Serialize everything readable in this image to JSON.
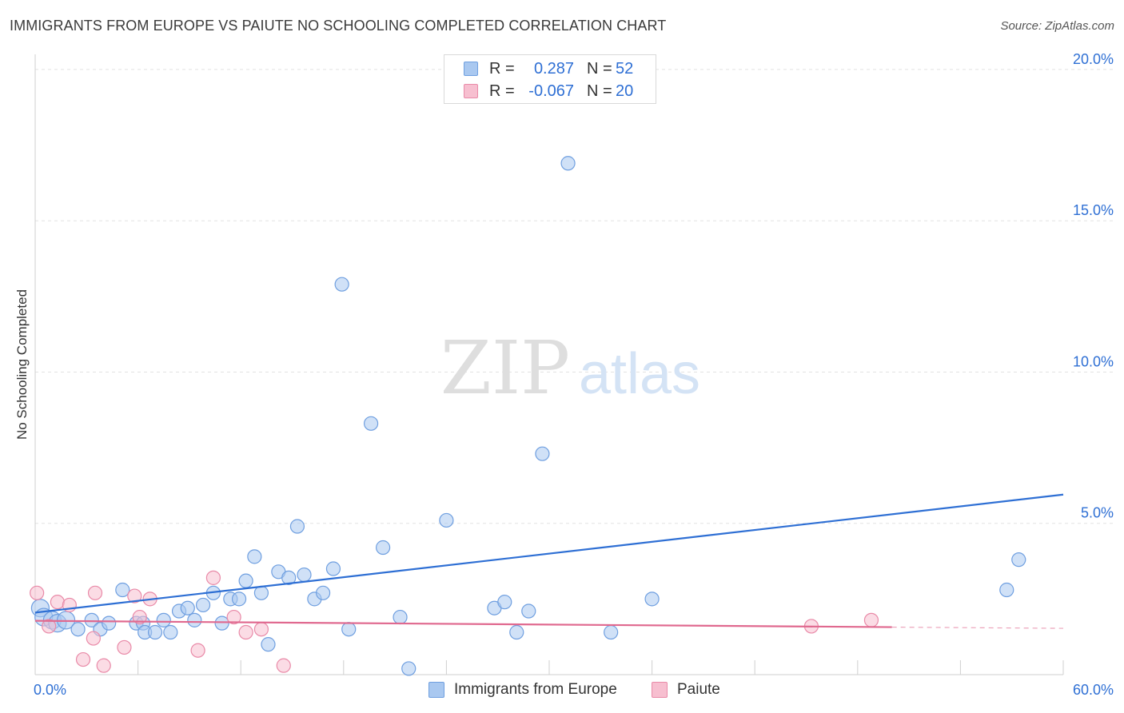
{
  "title": "IMMIGRANTS FROM EUROPE VS PAIUTE NO SCHOOLING COMPLETED CORRELATION CHART",
  "source": "Source: ZipAtlas.com",
  "watermark": {
    "zip": "ZIP",
    "atlas": "atlas"
  },
  "legend": {
    "r_label": "R =",
    "n_label": "N =",
    "rows": [
      {
        "r": "0.287",
        "n": "52",
        "color": "#a9c8f0",
        "border": "#6f9fe0"
      },
      {
        "r": "-0.067",
        "n": "20",
        "color": "#f7bfd0",
        "border": "#e98aa8"
      }
    ]
  },
  "bottom_legend": [
    {
      "label": "Immigrants from Europe",
      "color": "#a9c8f0",
      "border": "#6f9fe0"
    },
    {
      "label": "Paiute",
      "color": "#f7bfd0",
      "border": "#e98aa8"
    }
  ],
  "chart_data": {
    "type": "scatter",
    "title": "IMMIGRANTS FROM EUROPE VS PAIUTE NO SCHOOLING COMPLETED CORRELATION CHART",
    "xlabel": "",
    "ylabel": "No Schooling Completed",
    "xlim": [
      0,
      60
    ],
    "ylim": [
      0,
      20.5
    ],
    "x_tick_labels": [
      "0.0%",
      "60.0%"
    ],
    "y_ticks": [
      5,
      10,
      15,
      20
    ],
    "y_tick_labels": [
      "5.0%",
      "10.0%",
      "15.0%",
      "20.0%"
    ],
    "grid": true,
    "series": [
      {
        "name": "Immigrants from Europe",
        "color": "#a9c8f0",
        "edge": "#6f9fe0",
        "trend_color": "#2e6fd4",
        "trend": {
          "x0": 0,
          "y0": 2.05,
          "x1": 60,
          "y1": 5.95
        },
        "points": [
          [
            0.3,
            2.2
          ],
          [
            0.5,
            1.9
          ],
          [
            1.0,
            1.8
          ],
          [
            1.3,
            1.7
          ],
          [
            1.8,
            1.8
          ],
          [
            2.5,
            1.5
          ],
          [
            3.3,
            1.8
          ],
          [
            3.8,
            1.5
          ],
          [
            4.3,
            1.7
          ],
          [
            5.1,
            2.8
          ],
          [
            5.9,
            1.7
          ],
          [
            6.3,
            1.7
          ],
          [
            6.4,
            1.4
          ],
          [
            7.0,
            1.4
          ],
          [
            7.5,
            1.8
          ],
          [
            7.9,
            1.4
          ],
          [
            8.4,
            2.1
          ],
          [
            8.9,
            2.2
          ],
          [
            9.3,
            1.8
          ],
          [
            9.8,
            2.3
          ],
          [
            10.4,
            2.7
          ],
          [
            10.9,
            1.7
          ],
          [
            11.4,
            2.5
          ],
          [
            11.9,
            2.5
          ],
          [
            12.3,
            3.1
          ],
          [
            12.8,
            3.9
          ],
          [
            13.2,
            2.7
          ],
          [
            13.6,
            1.0
          ],
          [
            14.2,
            3.4
          ],
          [
            14.8,
            3.2
          ],
          [
            15.3,
            4.9
          ],
          [
            15.7,
            3.3
          ],
          [
            16.3,
            2.5
          ],
          [
            16.8,
            2.7
          ],
          [
            17.4,
            3.5
          ],
          [
            17.9,
            12.9
          ],
          [
            18.3,
            1.5
          ],
          [
            19.6,
            8.3
          ],
          [
            20.3,
            4.2
          ],
          [
            21.3,
            1.9
          ],
          [
            21.8,
            0.2
          ],
          [
            24.0,
            5.1
          ],
          [
            26.8,
            2.2
          ],
          [
            27.4,
            2.4
          ],
          [
            28.1,
            1.4
          ],
          [
            28.8,
            2.1
          ],
          [
            29.6,
            7.3
          ],
          [
            31.1,
            16.9
          ],
          [
            33.6,
            1.4
          ],
          [
            36.0,
            2.5
          ],
          [
            56.7,
            2.8
          ],
          [
            57.4,
            3.8
          ]
        ]
      },
      {
        "name": "Paiute",
        "color": "#f7bfd0",
        "edge": "#e98aa8",
        "trend_color": "#e0698f",
        "trend": {
          "x0": 0,
          "y0": 1.78,
          "x1": 50,
          "y1": 1.57,
          "dash_to_x": 60,
          "dash_to_y": 1.53
        },
        "points": [
          [
            0.1,
            2.7
          ],
          [
            0.8,
            1.6
          ],
          [
            1.3,
            2.4
          ],
          [
            2.0,
            2.3
          ],
          [
            2.8,
            0.5
          ],
          [
            3.4,
            1.2
          ],
          [
            3.5,
            2.7
          ],
          [
            4.0,
            0.3
          ],
          [
            5.2,
            0.9
          ],
          [
            5.8,
            2.6
          ],
          [
            6.1,
            1.9
          ],
          [
            6.7,
            2.5
          ],
          [
            9.5,
            0.8
          ],
          [
            10.4,
            3.2
          ],
          [
            11.6,
            1.9
          ],
          [
            12.3,
            1.4
          ],
          [
            13.2,
            1.5
          ],
          [
            14.5,
            0.3
          ],
          [
            45.3,
            1.6
          ],
          [
            48.8,
            1.8
          ]
        ]
      }
    ]
  }
}
